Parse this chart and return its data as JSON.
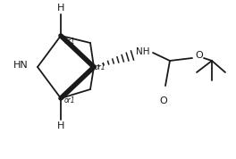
{
  "bg_color": "#ffffff",
  "line_color": "#1a1a1a",
  "lw": 1.3,
  "lw_bold": 4.0,
  "figsize": [
    2.64,
    1.78
  ],
  "dpi": 100,
  "xlim": [
    0,
    264
  ],
  "ylim": [
    0,
    178
  ]
}
